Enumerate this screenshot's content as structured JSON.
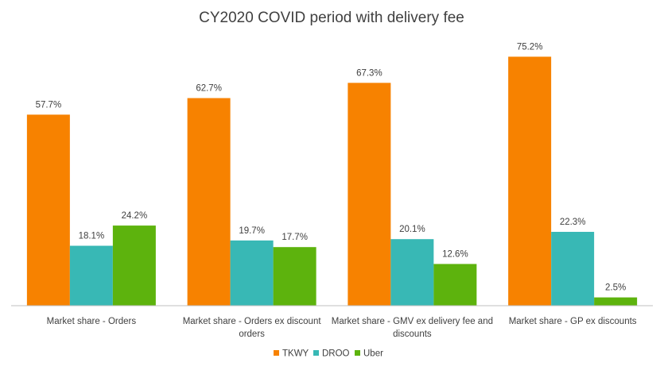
{
  "chart_data": {
    "type": "bar",
    "title": "CY2020 COVID period with delivery fee",
    "xlabel": "",
    "ylabel": "",
    "ylim": [
      0,
      80
    ],
    "grid": false,
    "legend_position": "bottom",
    "categories": [
      "Market share - Orders",
      "Market share - Orders ex discount orders",
      "Market share - GMV ex delivery fee and discounts",
      "Market share - GP ex discounts"
    ],
    "category_lines": [
      [
        "Market share - Orders"
      ],
      [
        "Market share - Orders ex discount",
        "orders"
      ],
      [
        "Market share - GMV ex delivery fee and",
        "discounts"
      ],
      [
        "Market share - GP ex discounts"
      ]
    ],
    "series": [
      {
        "name": "TKWY",
        "color": "#f78200",
        "values": [
          57.7,
          62.7,
          67.3,
          75.2
        ],
        "labels": [
          "57.7%",
          "62.7%",
          "67.3%",
          "75.2%"
        ]
      },
      {
        "name": "DROO",
        "color": "#38b8b5",
        "values": [
          18.1,
          19.7,
          20.1,
          22.3
        ],
        "labels": [
          "18.1%",
          "19.7%",
          "20.1%",
          "22.3%"
        ]
      },
      {
        "name": "Uber",
        "color": "#5db30d",
        "values": [
          24.2,
          17.7,
          12.6,
          2.5
        ],
        "labels": [
          "24.2%",
          "17.7%",
          "12.6%",
          "2.5%"
        ]
      }
    ]
  }
}
